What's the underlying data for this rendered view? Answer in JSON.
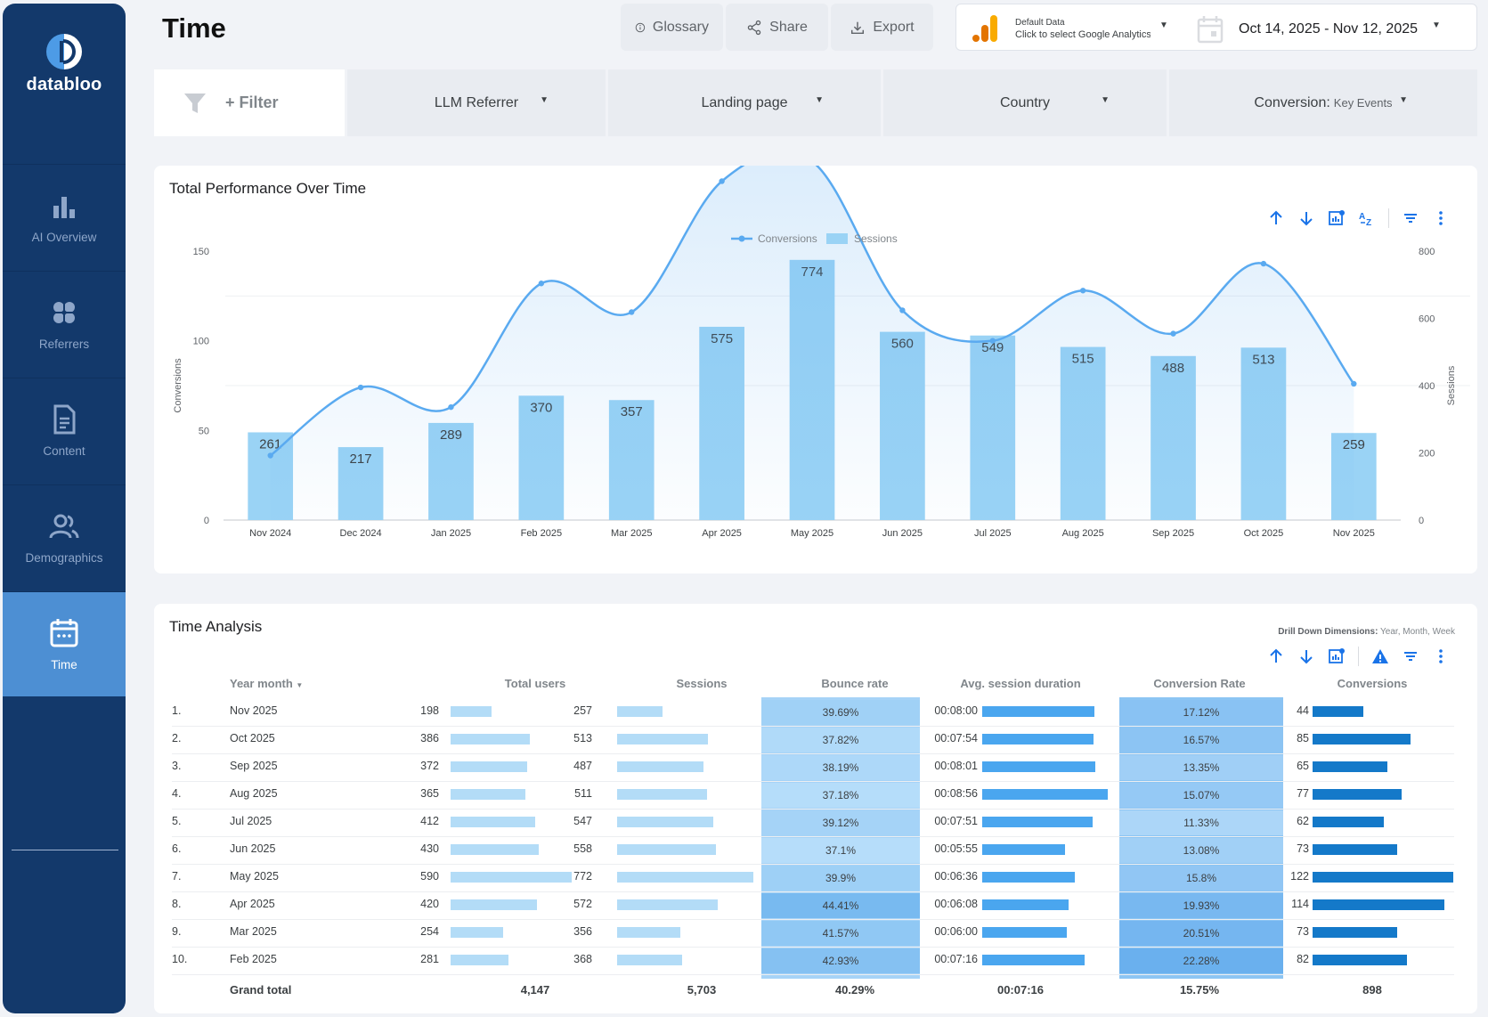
{
  "sidebar": {
    "brand": "databloo",
    "items": [
      {
        "label": "AI Overview",
        "icon": "bar-chart-icon",
        "active": false
      },
      {
        "label": "Referrers",
        "icon": "brain-icon",
        "active": false
      },
      {
        "label": "Content",
        "icon": "document-icon",
        "active": false
      },
      {
        "label": "Demographics",
        "icon": "people-icon",
        "active": false
      },
      {
        "label": "Time",
        "icon": "calendar-icon",
        "active": true
      }
    ]
  },
  "header": {
    "title": "Time",
    "buttons": {
      "glossary": "Glossary",
      "share": "Share",
      "export": "Export"
    },
    "datasource_title": "Default Data",
    "datasource_sub": "Click to select Google Analytics",
    "date_range": "Oct 14, 2025 - Nov 12, 2025"
  },
  "filters": {
    "filter_label": "+ Filter",
    "llm_referrer": "LLM Referrer",
    "landing_page": "Landing page",
    "country": "Country",
    "conversion_prefix": "Conversion:",
    "conversion_value": "Key Events"
  },
  "chart_card": {
    "title": "Total Performance Over Time"
  },
  "chart_data": {
    "type": "bar",
    "categories": [
      "Nov 2024",
      "Dec 2024",
      "Jan 2025",
      "Feb 2025",
      "Mar 2025",
      "Apr 2025",
      "May 2025",
      "Jun 2025",
      "Jul 2025",
      "Aug 2025",
      "Sep 2025",
      "Oct 2025",
      "Nov 2025"
    ],
    "series": [
      {
        "name": "Sessions",
        "type": "bar",
        "axis": "right",
        "values": [
          261,
          217,
          289,
          370,
          357,
          575,
          774,
          560,
          549,
          515,
          488,
          513,
          259
        ]
      },
      {
        "name": "Conversions",
        "type": "line",
        "axis": "left",
        "values": [
          36,
          74,
          63,
          132,
          116,
          189,
          200,
          117,
          100,
          128,
          104,
          143,
          76
        ]
      }
    ],
    "ylabel": "Conversions",
    "y2label": "Sessions",
    "yticks": [
      0,
      50,
      100,
      150
    ],
    "y2ticks": [
      0,
      200,
      400,
      600,
      800
    ],
    "ylim": [
      0,
      150
    ],
    "y2lim": [
      0,
      800
    ],
    "legend": "top-center",
    "colors": {
      "bar": "#9ad3f5",
      "line": "#5aaaf0"
    }
  },
  "table_card": {
    "title": "Time Analysis",
    "drill_label": "Drill Down Dimensions:",
    "drill_value": "Year, Month, Week",
    "columns": [
      "Year month",
      "Total users",
      "Sessions",
      "Bounce rate",
      "Avg. session duration",
      "Conversion Rate",
      "Conversions"
    ],
    "rows": [
      {
        "num": "1.",
        "month": "Nov 2025",
        "users": "198",
        "users_v": 198,
        "sessions": "257",
        "sessions_v": 257,
        "bounce": "39.69%",
        "bounce_v": 39.69,
        "duration": "00:08:00",
        "duration_v": 480,
        "conv_rate": "17.12%",
        "conv_rate_v": 17.12,
        "conversions": "44",
        "conversions_v": 44
      },
      {
        "num": "2.",
        "month": "Oct 2025",
        "users": "386",
        "users_v": 386,
        "sessions": "513",
        "sessions_v": 513,
        "bounce": "37.82%",
        "bounce_v": 37.82,
        "duration": "00:07:54",
        "duration_v": 474,
        "conv_rate": "16.57%",
        "conv_rate_v": 16.57,
        "conversions": "85",
        "conversions_v": 85
      },
      {
        "num": "3.",
        "month": "Sep 2025",
        "users": "372",
        "users_v": 372,
        "sessions": "487",
        "sessions_v": 487,
        "bounce": "38.19%",
        "bounce_v": 38.19,
        "duration": "00:08:01",
        "duration_v": 481,
        "conv_rate": "13.35%",
        "conv_rate_v": 13.35,
        "conversions": "65",
        "conversions_v": 65
      },
      {
        "num": "4.",
        "month": "Aug 2025",
        "users": "365",
        "users_v": 365,
        "sessions": "511",
        "sessions_v": 511,
        "bounce": "37.18%",
        "bounce_v": 37.18,
        "duration": "00:08:56",
        "duration_v": 536,
        "conv_rate": "15.07%",
        "conv_rate_v": 15.07,
        "conversions": "77",
        "conversions_v": 77
      },
      {
        "num": "5.",
        "month": "Jul 2025",
        "users": "412",
        "users_v": 412,
        "sessions": "547",
        "sessions_v": 547,
        "bounce": "39.12%",
        "bounce_v": 39.12,
        "duration": "00:07:51",
        "duration_v": 471,
        "conv_rate": "11.33%",
        "conv_rate_v": 11.33,
        "conversions": "62",
        "conversions_v": 62
      },
      {
        "num": "6.",
        "month": "Jun 2025",
        "users": "430",
        "users_v": 430,
        "sessions": "558",
        "sessions_v": 558,
        "bounce": "37.1%",
        "bounce_v": 37.1,
        "duration": "00:05:55",
        "duration_v": 355,
        "conv_rate": "13.08%",
        "conv_rate_v": 13.08,
        "conversions": "73",
        "conversions_v": 73
      },
      {
        "num": "7.",
        "month": "May 2025",
        "users": "590",
        "users_v": 590,
        "sessions": "772",
        "sessions_v": 772,
        "bounce": "39.9%",
        "bounce_v": 39.9,
        "duration": "00:06:36",
        "duration_v": 396,
        "conv_rate": "15.8%",
        "conv_rate_v": 15.8,
        "conversions": "122",
        "conversions_v": 122
      },
      {
        "num": "8.",
        "month": "Apr 2025",
        "users": "420",
        "users_v": 420,
        "sessions": "572",
        "sessions_v": 572,
        "bounce": "44.41%",
        "bounce_v": 44.41,
        "duration": "00:06:08",
        "duration_v": 368,
        "conv_rate": "19.93%",
        "conv_rate_v": 19.93,
        "conversions": "114",
        "conversions_v": 114
      },
      {
        "num": "9.",
        "month": "Mar 2025",
        "users": "254",
        "users_v": 254,
        "sessions": "356",
        "sessions_v": 356,
        "bounce": "41.57%",
        "bounce_v": 41.57,
        "duration": "00:06:00",
        "duration_v": 360,
        "conv_rate": "20.51%",
        "conv_rate_v": 20.51,
        "conversions": "73",
        "conversions_v": 73
      },
      {
        "num": "10.",
        "month": "Feb 2025",
        "users": "281",
        "users_v": 281,
        "sessions": "368",
        "sessions_v": 368,
        "bounce": "42.93%",
        "bounce_v": 42.93,
        "duration": "00:07:16",
        "duration_v": 436,
        "conv_rate": "22.28%",
        "conv_rate_v": 22.28,
        "conversions": "82",
        "conversions_v": 82
      }
    ],
    "totals": {
      "label": "Grand total",
      "users": "4,147",
      "sessions": "5,703",
      "bounce": "40.29%",
      "duration": "00:07:16",
      "conv_rate": "15.75%",
      "conversions": "898"
    },
    "colors": {
      "users_bar": "#b3dcf7",
      "sessions_bar": "#b3dcf7",
      "duration_bar": "#4aa6ef",
      "conversions_bar": "#1479c9"
    }
  }
}
